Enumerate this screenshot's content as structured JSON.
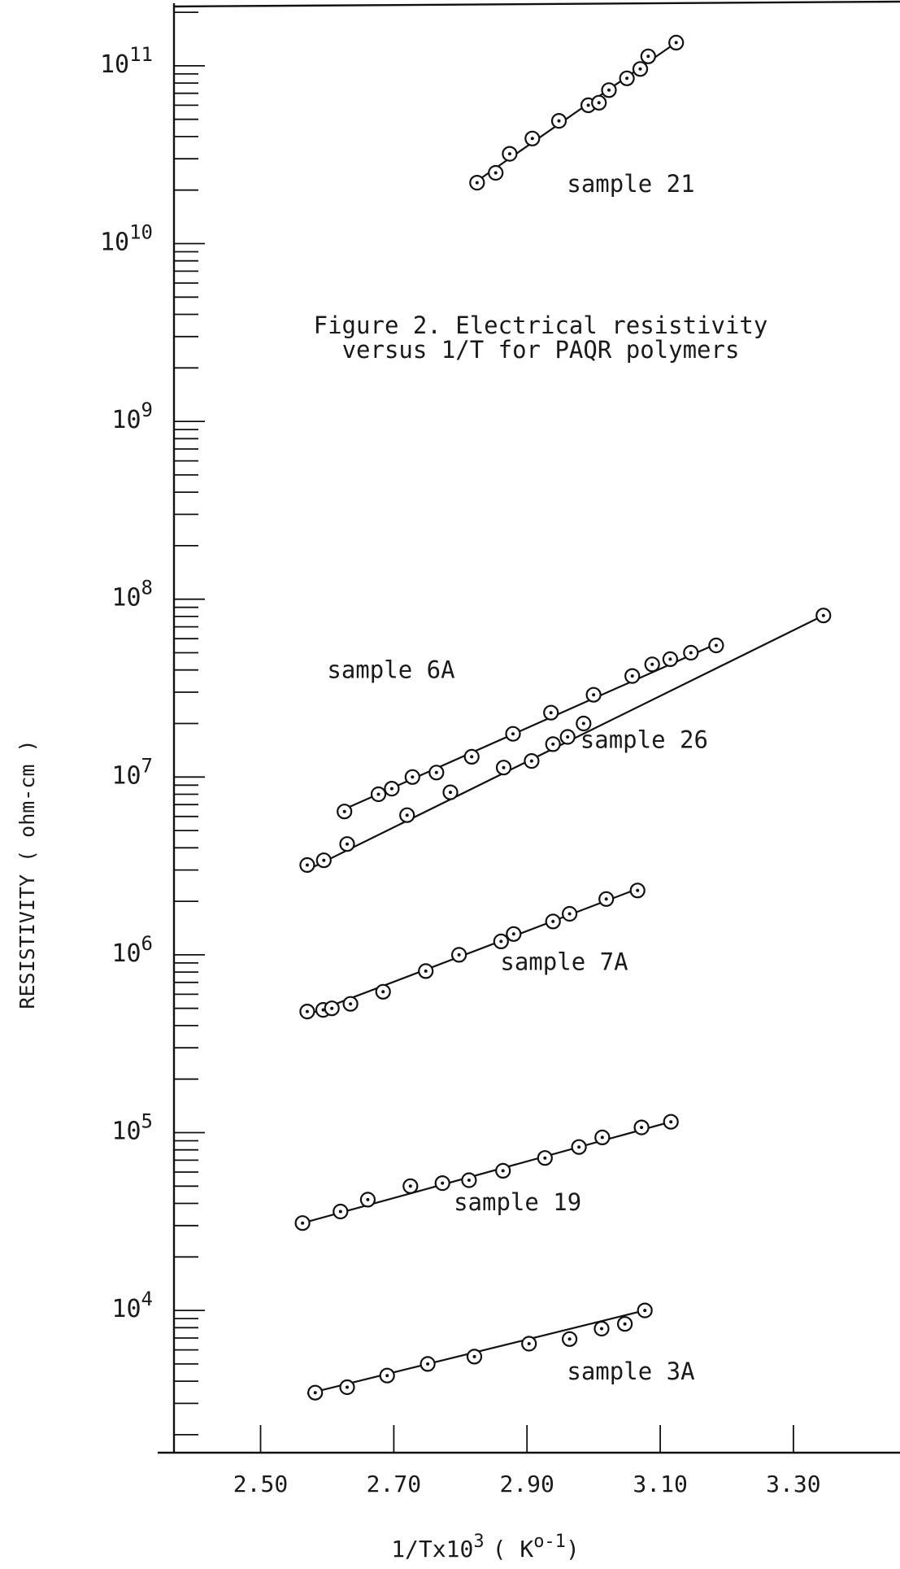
{
  "chart_data": {
    "type": "scatter",
    "title": "Figure 2.  Electrical resistivity",
    "subtitle": "versus 1/T for PAQR polymers",
    "xlabel": "1/Tx10",
    "xlabel_exponent": "3",
    "xlabel_unit_open": "( K",
    "xlabel_unit_exponent": "o-1",
    "xlabel_unit_close": ")",
    "ylabel": "RESISTIVITY ( ohm-cm )",
    "y_scale": "log",
    "xlim": [
      2.37,
      3.46
    ],
    "ylim": [
      3.2,
      11.37
    ],
    "x_ticks": [
      2.5,
      2.7,
      2.9,
      3.1,
      3.3
    ],
    "x_tick_labels": [
      "2.50",
      "2.70",
      "2.90",
      "3.10",
      "3.30"
    ],
    "y_tick_labels": [
      {
        "base": "10",
        "exp": "4"
      },
      {
        "base": "10",
        "exp": "5"
      },
      {
        "base": "10",
        "exp": "6"
      },
      {
        "base": "10",
        "exp": "7"
      },
      {
        "base": "10",
        "exp": "8"
      },
      {
        "base": "10",
        "exp": "9"
      },
      {
        "base": "10",
        "exp": "10"
      },
      {
        "base": "10",
        "exp": "11"
      }
    ],
    "grid": false,
    "legend": "none",
    "series": [
      {
        "name": "sample 21",
        "x": [
          2.825,
          2.853,
          2.874,
          2.908,
          2.948,
          2.992,
          3.008,
          3.023,
          3.05,
          3.07,
          3.082,
          3.124
        ],
        "y": [
          22000000000.0,
          25000000000.0,
          32000000000.0,
          39000000000.0,
          49000000000.0,
          60000000000.0,
          62000000000.0,
          73000000000.0,
          85000000000.0,
          96000000000.0,
          113000000000.0,
          135000000000.0
        ],
        "fit": [
          [
            2.825,
            22500000000.0
          ],
          [
            3.124,
            135000000000.0
          ]
        ]
      },
      {
        "name": "sample 6A",
        "x": [
          2.626,
          2.677,
          2.697,
          2.728,
          2.764,
          2.817,
          2.879,
          2.936,
          3.0,
          3.058,
          3.088,
          3.115,
          3.146,
          3.184
        ],
        "y": [
          6400000.0,
          8000000.0,
          8600000.0,
          10000000.0,
          10600000.0,
          13000000.0,
          17500000.0,
          23000000.0,
          29000000.0,
          37000000.0,
          43000000.0,
          46000000.0,
          50000000.0,
          55000000.0
        ],
        "fit": [
          [
            2.626,
            6600000.0
          ],
          [
            3.184,
            56000000.0
          ]
        ]
      },
      {
        "name": "sample 26",
        "x": [
          2.57,
          2.595,
          2.63,
          2.72,
          2.785,
          2.865,
          2.907,
          2.939,
          2.961,
          2.985,
          3.345
        ],
        "y": [
          3200000.0,
          3400000.0,
          4200000.0,
          6100000.0,
          8200000.0,
          11300000.0,
          12300000.0,
          15300000.0,
          16800000.0,
          20000000.0,
          81000000.0
        ],
        "fit": [
          [
            2.57,
            3000000.0
          ],
          [
            3.345,
            81000000.0
          ]
        ]
      },
      {
        "name": "sample 7A",
        "x": [
          2.57,
          2.594,
          2.607,
          2.635,
          2.684,
          2.748,
          2.798,
          2.861,
          2.88,
          2.939,
          2.964,
          3.019,
          3.066
        ],
        "y": [
          480000.0,
          490000.0,
          500000.0,
          530000.0,
          620000.0,
          810000.0,
          1000000.0,
          1190000.0,
          1310000.0,
          1540000.0,
          1700000.0,
          2060000.0,
          2300000.0
        ],
        "fit": [
          [
            2.57,
            460000.0
          ],
          [
            3.066,
            2350000.0
          ]
        ]
      },
      {
        "name": "sample 19",
        "x": [
          2.563,
          2.62,
          2.661,
          2.725,
          2.773,
          2.813,
          2.864,
          2.927,
          2.978,
          3.013,
          3.072,
          3.116
        ],
        "y": [
          31000.0,
          36000.0,
          42000.0,
          50000.0,
          52000.0,
          54000.0,
          61000.0,
          72000.0,
          83000.0,
          94000.0,
          107000.0,
          115000.0
        ],
        "fit": [
          [
            2.563,
            31000.0
          ],
          [
            3.116,
            115000.0
          ]
        ]
      },
      {
        "name": "sample 3A",
        "x": [
          2.582,
          2.63,
          2.69,
          2.751,
          2.821,
          2.903,
          2.964,
          3.012,
          3.047,
          3.077
        ],
        "y": [
          3450.0,
          3700.0,
          4300.0,
          5000.0,
          5500.0,
          6500.0,
          6900.0,
          7900.0,
          8400.0,
          10000.0
        ],
        "fit": [
          [
            2.57,
            3400.0
          ],
          [
            3.077,
            10000.0
          ]
        ]
      }
    ]
  }
}
